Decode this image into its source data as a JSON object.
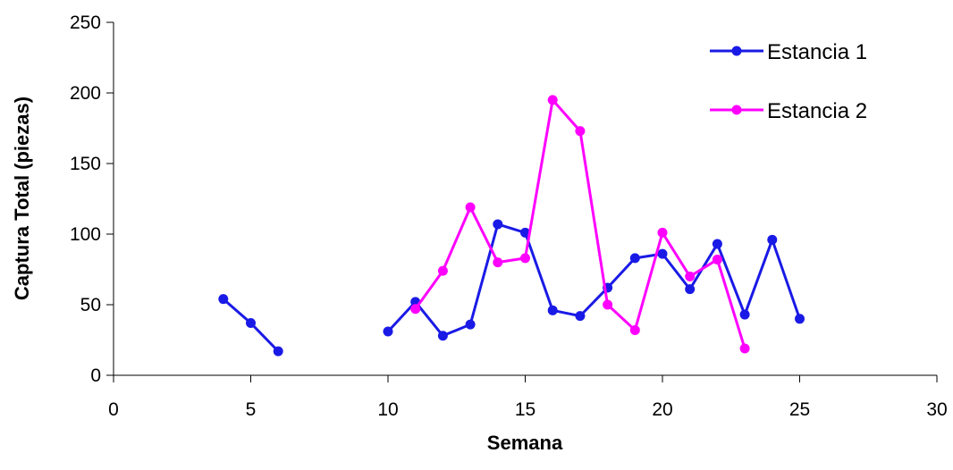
{
  "chart_data": {
    "type": "line",
    "title": "",
    "xlabel": "Semana",
    "ylabel": "Captura Total (piezas)",
    "xlim": [
      0,
      30
    ],
    "ylim": [
      0,
      250
    ],
    "xticks": [
      0,
      5,
      10,
      15,
      20,
      25,
      30
    ],
    "yticks": [
      0,
      50,
      100,
      150,
      200,
      250
    ],
    "grid": false,
    "legend_position": "top-right",
    "series": [
      {
        "name": "Estancia 1",
        "color": "#1a1ae6",
        "segments": [
          [
            [
              4,
              54
            ],
            [
              5,
              37
            ],
            [
              6,
              17
            ]
          ],
          [
            [
              10,
              31
            ],
            [
              11,
              52
            ],
            [
              12,
              28
            ],
            [
              13,
              36
            ],
            [
              14,
              107
            ],
            [
              15,
              101
            ],
            [
              16,
              46
            ],
            [
              17,
              42
            ],
            [
              18,
              62
            ],
            [
              19,
              83
            ],
            [
              20,
              86
            ],
            [
              21,
              61
            ],
            [
              22,
              93
            ],
            [
              23,
              43
            ],
            [
              24,
              96
            ],
            [
              25,
              40
            ]
          ]
        ]
      },
      {
        "name": "Estancia 2",
        "color": "#ff00ff",
        "segments": [
          [
            [
              11,
              47
            ],
            [
              12,
              74
            ],
            [
              13,
              119
            ],
            [
              14,
              80
            ],
            [
              15,
              83
            ],
            [
              16,
              195
            ],
            [
              17,
              173
            ],
            [
              18,
              50
            ],
            [
              19,
              32
            ],
            [
              20,
              101
            ],
            [
              21,
              70
            ],
            [
              22,
              82
            ],
            [
              23,
              19
            ]
          ]
        ]
      }
    ]
  }
}
